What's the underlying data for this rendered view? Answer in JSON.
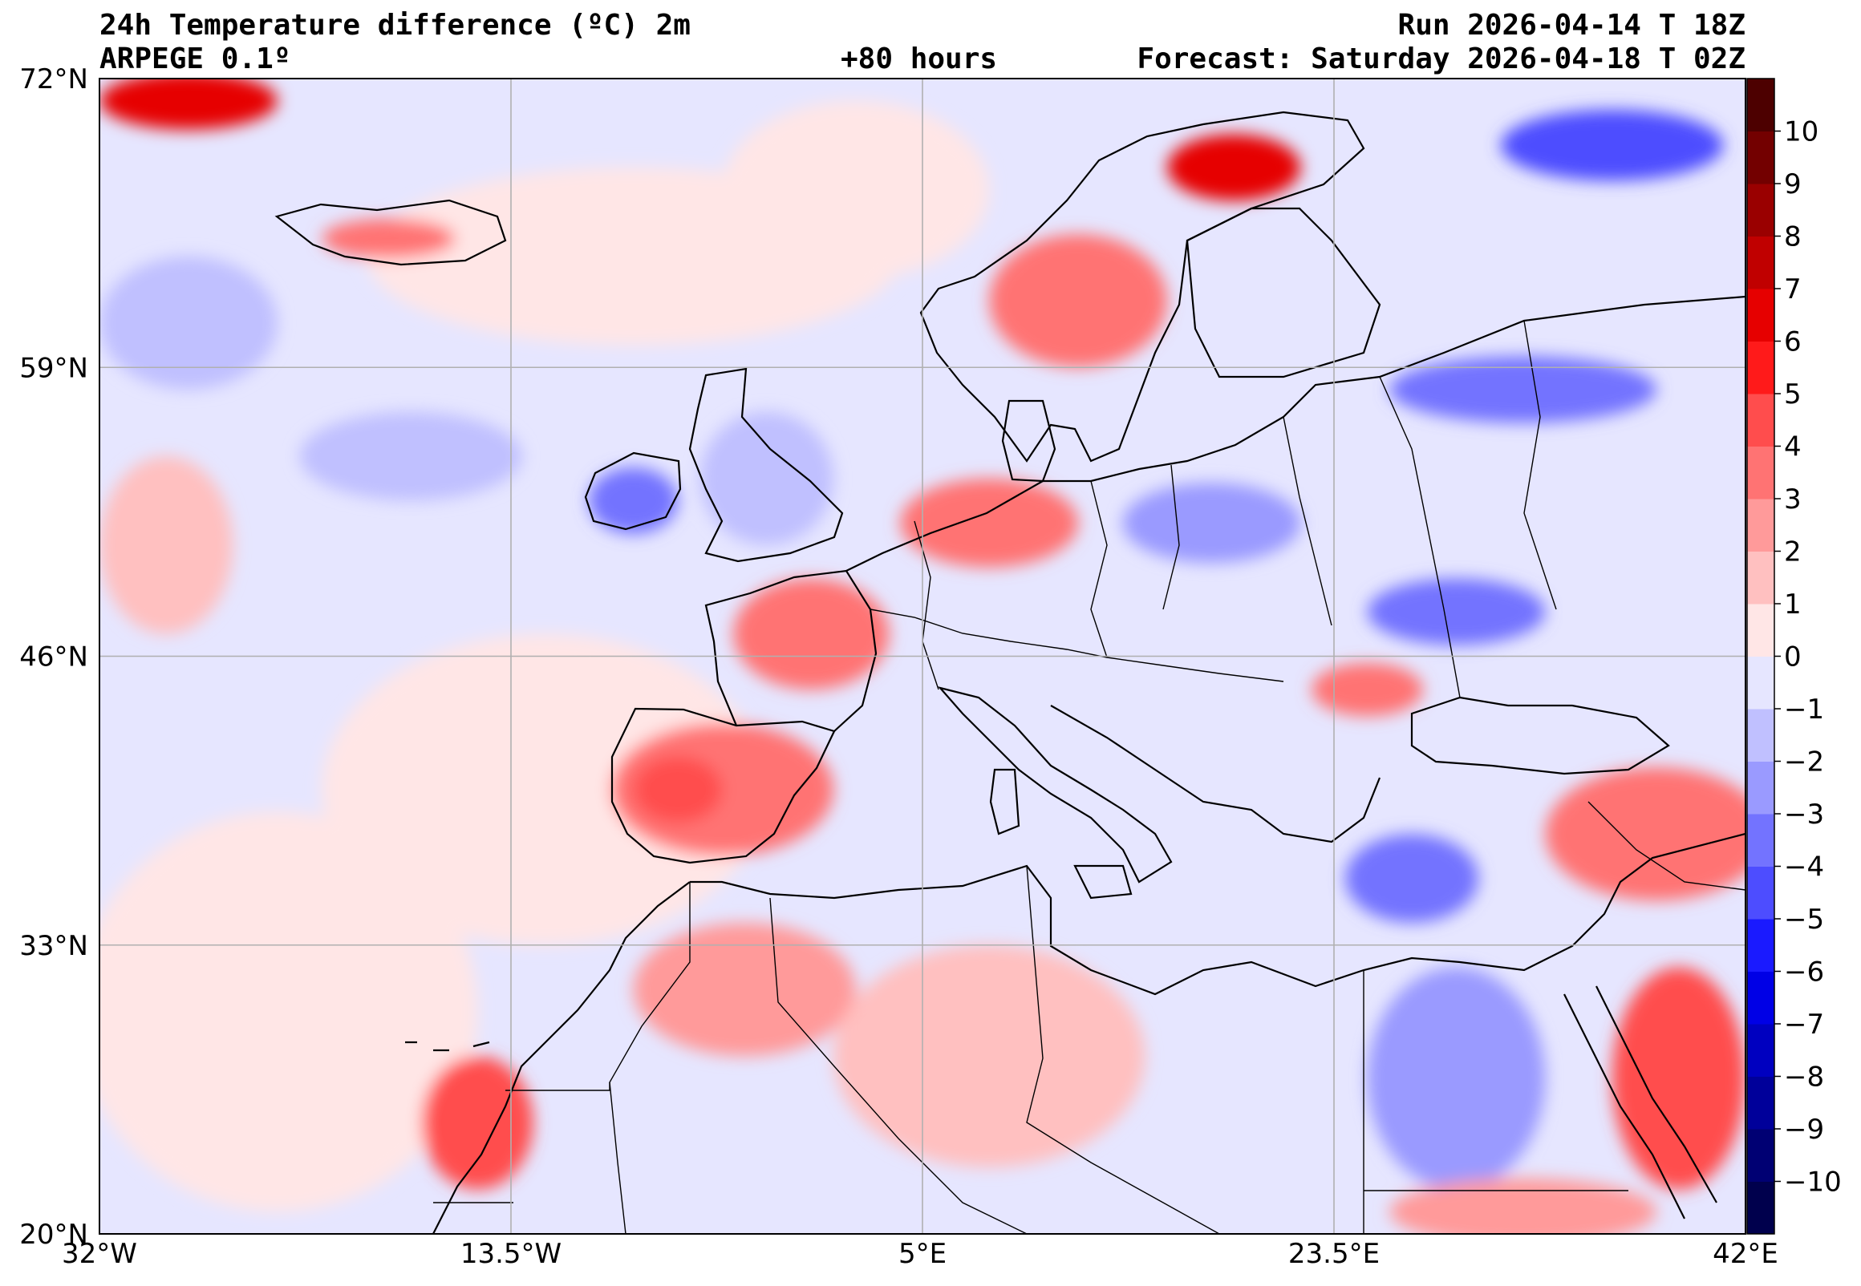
{
  "header": {
    "title": "24h Temperature difference (ºC) 2m",
    "model": "ARPEGE 0.1º",
    "run": "Run 2026-04-14 T 18Z",
    "lead": "+80 hours",
    "forecast": "Forecast: Saturday 2026-04-18 T 02Z"
  },
  "axes": {
    "lon_range": [
      -32,
      42
    ],
    "lat_range": [
      20,
      72
    ],
    "lat_ticks": [
      {
        "value": 72,
        "label": "72°N"
      },
      {
        "value": 59,
        "label": "59°N"
      },
      {
        "value": 46,
        "label": "46°N"
      },
      {
        "value": 33,
        "label": "33°N"
      },
      {
        "value": 20,
        "label": "20°N"
      }
    ],
    "lon_ticks": [
      {
        "value": -32,
        "label": "32°W"
      },
      {
        "value": -13.5,
        "label": "13.5°W"
      },
      {
        "value": 5,
        "label": "5°E"
      },
      {
        "value": 23.5,
        "label": "23.5°E"
      },
      {
        "value": 42,
        "label": "42°E"
      }
    ]
  },
  "colorbar": {
    "levels": [
      {
        "min": -11,
        "max": -10,
        "color": "#00004d"
      },
      {
        "min": -10,
        "max": -9,
        "color": "#000073"
      },
      {
        "min": -9,
        "max": -8,
        "color": "#00009a"
      },
      {
        "min": -8,
        "max": -7,
        "color": "#0000c0"
      },
      {
        "min": -7,
        "max": -6,
        "color": "#0000e6"
      },
      {
        "min": -6,
        "max": -5,
        "color": "#1a1aff"
      },
      {
        "min": -5,
        "max": -4,
        "color": "#4d4dff"
      },
      {
        "min": -4,
        "max": -3,
        "color": "#7373ff"
      },
      {
        "min": -3,
        "max": -2,
        "color": "#9a9aff"
      },
      {
        "min": -2,
        "max": -1,
        "color": "#c0c0ff"
      },
      {
        "min": -1,
        "max": 0,
        "color": "#e6e6ff"
      },
      {
        "min": 0,
        "max": 1,
        "color": "#ffe6e6"
      },
      {
        "min": 1,
        "max": 2,
        "color": "#ffc0c0"
      },
      {
        "min": 2,
        "max": 3,
        "color": "#ff9a9a"
      },
      {
        "min": 3,
        "max": 4,
        "color": "#ff7373"
      },
      {
        "min": 4,
        "max": 5,
        "color": "#ff4d4d"
      },
      {
        "min": 5,
        "max": 6,
        "color": "#ff1a1a"
      },
      {
        "min": 6,
        "max": 7,
        "color": "#e60000"
      },
      {
        "min": 7,
        "max": 8,
        "color": "#c00000"
      },
      {
        "min": 8,
        "max": 9,
        "color": "#9a0000"
      },
      {
        "min": 9,
        "max": 10,
        "color": "#730000"
      },
      {
        "min": 10,
        "max": 11,
        "color": "#4d0000"
      }
    ],
    "tick_labels": [
      {
        "value": 10,
        "label": "10"
      },
      {
        "value": 9,
        "label": "9"
      },
      {
        "value": 8,
        "label": "8"
      },
      {
        "value": 7,
        "label": "7"
      },
      {
        "value": 6,
        "label": "6"
      },
      {
        "value": 5,
        "label": "5"
      },
      {
        "value": 4,
        "label": "4"
      },
      {
        "value": 3,
        "label": "3"
      },
      {
        "value": 2,
        "label": "2"
      },
      {
        "value": 1,
        "label": "1"
      },
      {
        "value": 0,
        "label": "0"
      },
      {
        "value": -1,
        "label": "−1"
      },
      {
        "value": -2,
        "label": "−2"
      },
      {
        "value": -3,
        "label": "−3"
      },
      {
        "value": -4,
        "label": "−4"
      },
      {
        "value": -5,
        "label": "−5"
      },
      {
        "value": -6,
        "label": "−6"
      },
      {
        "value": -7,
        "label": "−7"
      },
      {
        "value": -8,
        "label": "−8"
      },
      {
        "value": -9,
        "label": "−9"
      },
      {
        "value": -10,
        "label": "−10"
      }
    ]
  },
  "field": {
    "background": "#e6e6ff",
    "grid_color": "#b0b0b0",
    "coast_color": "#000000",
    "regions": [
      {
        "name": "atlantic-south-warm",
        "color": "#ffe6e6",
        "lon": -24,
        "lat": 30,
        "rx": 9,
        "ry": 9
      },
      {
        "name": "atlantic-warm-band",
        "color": "#ffe6e6",
        "lon": -12,
        "lat": 40,
        "rx": 10,
        "ry": 7
      },
      {
        "name": "north-atlantic-warm",
        "color": "#ffe6e6",
        "lon": -8,
        "lat": 64,
        "rx": 12,
        "ry": 4
      },
      {
        "name": "norwegian-sea-warm",
        "color": "#ffe6e6",
        "lon": 2,
        "lat": 67,
        "rx": 6,
        "ry": 4
      },
      {
        "name": "west-atlantic-cold",
        "color": "#c0c0ff",
        "lon": -28,
        "lat": 61,
        "rx": 4,
        "ry": 3
      },
      {
        "name": "atlantic-cold-blob",
        "color": "#c0c0ff",
        "lon": -18,
        "lat": 55,
        "rx": 5,
        "ry": 2
      },
      {
        "name": "atlantic-warm-west",
        "color": "#ffc0c0",
        "lon": -29,
        "lat": 51,
        "rx": 3,
        "ry": 4
      },
      {
        "name": "iberia-warm",
        "color": "#ff7373",
        "lon": -4,
        "lat": 40,
        "rx": 5,
        "ry": 3
      },
      {
        "name": "iberia-core",
        "color": "#ff4d4d",
        "lon": -6,
        "lat": 40,
        "rx": 2,
        "ry": 1.5
      },
      {
        "name": "morocco-warm",
        "color": "#ff9a9a",
        "lon": -3,
        "lat": 31,
        "rx": 5,
        "ry": 3
      },
      {
        "name": "west-sahara-warm",
        "color": "#ff4d4d",
        "lon": -15,
        "lat": 25,
        "rx": 2.5,
        "ry": 3
      },
      {
        "name": "sahara-warm",
        "color": "#ffc0c0",
        "lon": 8,
        "lat": 28,
        "rx": 7,
        "ry": 5
      },
      {
        "name": "france-warm",
        "color": "#ff7373",
        "lon": 0,
        "lat": 47,
        "rx": 3.5,
        "ry": 2.5
      },
      {
        "name": "germany-warm",
        "color": "#ff7373",
        "lon": 8,
        "lat": 52,
        "rx": 4,
        "ry": 2
      },
      {
        "name": "norway-warm",
        "color": "#ff7373",
        "lon": 12,
        "lat": 62,
        "rx": 4,
        "ry": 3
      },
      {
        "name": "lapland-warm",
        "color": "#e60000",
        "lon": 19,
        "lat": 68,
        "rx": 3,
        "ry": 1.5
      },
      {
        "name": "ireland-cold",
        "color": "#7373ff",
        "lon": -8,
        "lat": 53,
        "rx": 2,
        "ry": 1.5
      },
      {
        "name": "uk-cold",
        "color": "#c0c0ff",
        "lon": -2,
        "lat": 54,
        "rx": 3,
        "ry": 3
      },
      {
        "name": "poland-cold",
        "color": "#9a9aff",
        "lon": 18,
        "lat": 52,
        "rx": 4,
        "ry": 1.8
      },
      {
        "name": "russia-cold",
        "color": "#7373ff",
        "lon": 32,
        "lat": 58,
        "rx": 6,
        "ry": 1.5
      },
      {
        "name": "barents-cold",
        "color": "#4d4dff",
        "lon": 36,
        "lat": 69,
        "rx": 5,
        "ry": 1.6
      },
      {
        "name": "ukraine-cold",
        "color": "#7373ff",
        "lon": 29,
        "lat": 48,
        "rx": 4,
        "ry": 1.5
      },
      {
        "name": "turkey-warm",
        "color": "#ff7373",
        "lon": 38,
        "lat": 38,
        "rx": 5,
        "ry": 3
      },
      {
        "name": "aegean-cold",
        "color": "#7373ff",
        "lon": 27,
        "lat": 36,
        "rx": 3,
        "ry": 2
      },
      {
        "name": "egypt-cold",
        "color": "#9a9aff",
        "lon": 29,
        "lat": 27,
        "rx": 4,
        "ry": 5
      },
      {
        "name": "arabia-warm",
        "color": "#ff4d4d",
        "lon": 39,
        "lat": 27,
        "rx": 3,
        "ry": 5
      },
      {
        "name": "sudan-warm",
        "color": "#ff9a9a",
        "lon": 32,
        "lat": 21,
        "rx": 6,
        "ry": 1.5
      },
      {
        "name": "svalbard-warm",
        "color": "#e60000",
        "lon": -28,
        "lat": 71,
        "rx": 4,
        "ry": 1.3
      },
      {
        "name": "iceland-warm",
        "color": "#ff7373",
        "lon": -19,
        "lat": 64.8,
        "rx": 3,
        "ry": 0.9
      },
      {
        "name": "romania-warm",
        "color": "#ff7373",
        "lon": 25,
        "lat": 44.5,
        "rx": 2.5,
        "ry": 1.2
      }
    ]
  }
}
